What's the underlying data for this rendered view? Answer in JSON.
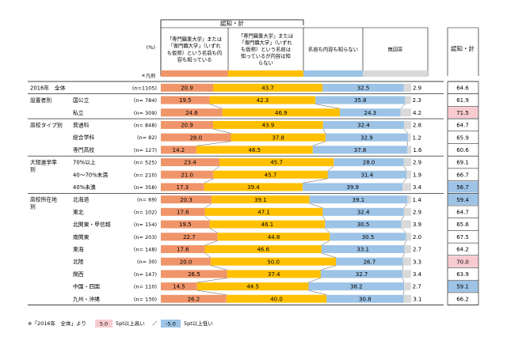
{
  "header": {
    "group_label": "認知・計",
    "percent_label": "(%)",
    "legend_note": "＊凡例",
    "columns": [
      "「専門職業大学」または「専門職大学」（いずれも仮称）という名前も内容も知っている",
      "「専門職業大学」または「専門職大学」（いずれも仮称）という名前は知っているが内容は知らない",
      "名前も内容も知らない",
      "無回答"
    ],
    "right_label": "認知・計"
  },
  "footnote": {
    "prefix": "※「2016年　全体」より",
    "high_value": "5.0",
    "high_text": "5pt以上高い",
    "sep": "／",
    "low_value": "-5.0",
    "low_text": "5pt以上低い"
  },
  "colors": {
    "c1": "#F0956A",
    "c2": "#FFC000",
    "c3": "#9DC3E6",
    "c4": "#D9D9D9",
    "high": "#F8CBD0",
    "low": "#9DC3E6"
  },
  "chart_data": {
    "type": "bar",
    "stacked": true,
    "orientation": "horizontal",
    "series_names": [
      "「専門職業大学」または「専門職大学」（いずれも仮称）という名前も内容も知っている",
      "「専門職業大学」または「専門職大学」（いずれも仮称）という名前は知っているが内容は知らない",
      "名前も内容も知らない",
      "無回答"
    ],
    "rows": [
      {
        "group": "2016年　全体",
        "label": "",
        "n": "(n=1105)",
        "values": [
          20.9,
          43.7,
          32.5,
          2.9
        ],
        "total": "64.6",
        "flag": ""
      },
      {
        "group": "設置者別",
        "label": "国公立",
        "n": "(n=  784)",
        "values": [
          19.5,
          42.3,
          35.8,
          2.3
        ],
        "total": "61.9",
        "flag": ""
      },
      {
        "group": "",
        "label": "私立",
        "n": "(n=  309)",
        "values": [
          24.6,
          46.9,
          24.3,
          4.2
        ],
        "total": "71.5",
        "flag": "high"
      },
      {
        "group": "高校タイプ別",
        "label": "普通科",
        "n": "(n=  848)",
        "values": [
          20.9,
          43.9,
          32.4,
          2.8
        ],
        "total": "64.7",
        "flag": ""
      },
      {
        "group": "",
        "label": "総合学科",
        "n": "(n=    82)",
        "values": [
          28.0,
          37.8,
          32.9,
          1.2
        ],
        "total": "65.9",
        "flag": ""
      },
      {
        "group": "",
        "label": "専門高校",
        "n": "(n=  127)",
        "values": [
          14.2,
          46.5,
          37.8,
          1.6
        ],
        "total": "60.6",
        "flag": ""
      },
      {
        "group": "大短進学率別",
        "label": "70%以上",
        "n": "(n=  525)",
        "values": [
          23.4,
          45.7,
          28.0,
          2.9
        ],
        "total": "69.1",
        "flag": ""
      },
      {
        "group": "",
        "label": "40～70%未満",
        "n": "(n=  210)",
        "values": [
          21.0,
          45.7,
          31.4,
          1.9
        ],
        "total": "66.7",
        "flag": ""
      },
      {
        "group": "",
        "label": "40%未満",
        "n": "(n=  358)",
        "values": [
          17.3,
          39.4,
          39.9,
          3.4
        ],
        "total": "56.7",
        "flag": "low"
      },
      {
        "group": "高校所在地別",
        "label": "北海道",
        "n": "(n=    69)",
        "values": [
          20.3,
          39.1,
          39.1,
          1.4
        ],
        "total": "59.4",
        "flag": "low"
      },
      {
        "group": "",
        "label": "東北",
        "n": "(n=  102)",
        "values": [
          17.6,
          47.1,
          32.4,
          2.9
        ],
        "total": "64.7",
        "flag": ""
      },
      {
        "group": "",
        "label": "北関東・甲信越",
        "n": "(n=  154)",
        "values": [
          19.5,
          46.1,
          30.5,
          3.9
        ],
        "total": "65.6",
        "flag": ""
      },
      {
        "group": "",
        "label": "南関東",
        "n": "(n=  203)",
        "values": [
          22.7,
          44.8,
          30.5,
          2.0
        ],
        "total": "67.5",
        "flag": ""
      },
      {
        "group": "",
        "label": "東海",
        "n": "(n=  148)",
        "values": [
          17.6,
          46.6,
          33.1,
          2.7
        ],
        "total": "64.2",
        "flag": ""
      },
      {
        "group": "",
        "label": "北陸",
        "n": "(n=    30)",
        "values": [
          20.0,
          50.0,
          26.7,
          3.3
        ],
        "total": "70.0",
        "flag": "high"
      },
      {
        "group": "",
        "label": "関西",
        "n": "(n=  147)",
        "values": [
          26.5,
          37.4,
          32.7,
          3.4
        ],
        "total": "63.9",
        "flag": ""
      },
      {
        "group": "",
        "label": "中国・四国",
        "n": "(n=  110)",
        "values": [
          14.5,
          44.5,
          38.2,
          2.7
        ],
        "total": "59.1",
        "flag": "low"
      },
      {
        "group": "",
        "label": "九州・沖縄",
        "n": "(n=  130)",
        "values": [
          26.2,
          40.0,
          30.8,
          3.1
        ],
        "total": "66.2",
        "flag": ""
      }
    ]
  }
}
